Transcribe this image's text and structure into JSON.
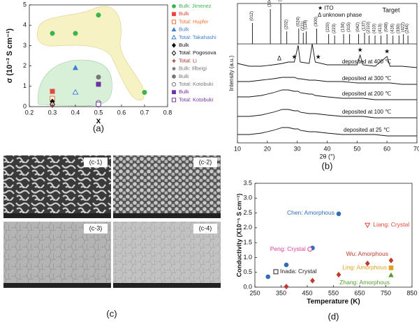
{
  "chart_data": [
    {
      "type": "scatter",
      "caption": "(a)",
      "xlabel": "x",
      "ylabel": "σ (10⁻³ S cm⁻¹)",
      "xlim": [
        0.2,
        0.8
      ],
      "ylim": [
        0,
        5
      ],
      "xticks": [
        0.2,
        0.3,
        0.4,
        0.5,
        0.6,
        0.7,
        0.8
      ],
      "yticks": [
        0,
        1,
        2,
        3,
        4,
        5
      ],
      "series": [
        {
          "name": "Bulk: Jimenez",
          "color": "#3cb44b",
          "marker": "circle",
          "x": [
            0.3,
            0.4,
            0.5,
            0.7
          ],
          "values": [
            3.6,
            3.6,
            4.5,
            0.7
          ]
        },
        {
          "name": "Bulk",
          "color": "#e8453c",
          "marker": "square",
          "x": [
            0.3
          ],
          "values": [
            0.75
          ]
        },
        {
          "name": "Total: Hupfer",
          "color": "#f07030",
          "marker": "square-open",
          "x": [
            0.3
          ],
          "values": [
            0.4
          ]
        },
        {
          "name": "Bulk",
          "color": "#3f7fd0",
          "marker": "triangle",
          "x": [
            0.4
          ],
          "values": [
            1.9
          ]
        },
        {
          "name": "Total: Takahashi",
          "color": "#3f7fd0",
          "marker": "triangle-open",
          "x": [
            0.4
          ],
          "values": [
            0.7
          ]
        },
        {
          "name": "Bulk",
          "color": "#111111",
          "marker": "diamond",
          "x": [
            0.3
          ],
          "values": [
            0.25
          ]
        },
        {
          "name": "Total: Pogosova",
          "color": "#111111",
          "marker": "diamond-open",
          "x": [
            0.3
          ],
          "values": [
            0.12
          ]
        },
        {
          "name": "Total: Li",
          "color": "#a0302a",
          "marker": "plus",
          "x": [
            0.3
          ],
          "values": [
            0.05
          ]
        },
        {
          "name": "Bulk: Illbeigi",
          "color": "#777777",
          "marker": "star",
          "x": [
            0.5
          ],
          "values": [
            0.05
          ]
        },
        {
          "name": "Bulk",
          "color": "#777777",
          "marker": "circle",
          "x": [
            0.5
          ],
          "values": [
            1.45
          ]
        },
        {
          "name": "Total: Kotobuki",
          "color": "#777777",
          "marker": "circle-open",
          "x": [
            0.5
          ],
          "values": [
            0.2
          ]
        },
        {
          "name": "Bulk",
          "color": "#7030a0",
          "marker": "square",
          "x": [
            0.5
          ],
          "values": [
            1.1
          ]
        },
        {
          "name": "Total: Kotobuki",
          "color": "#7030a0",
          "marker": "square-open",
          "x": [
            0.5
          ],
          "values": [
            0.12
          ]
        }
      ]
    },
    {
      "type": "line",
      "caption": "(b)",
      "xlabel": "2θ (°)",
      "ylabel": "Intensity (a.u.)",
      "xlim": [
        10,
        70
      ],
      "xticks": [
        10,
        20,
        30,
        40,
        50,
        60,
        70
      ],
      "ylim": [
        0,
        100
      ],
      "legend": [
        "★ ITO",
        "Δ unknown phase"
      ],
      "target": {
        "name": "Target",
        "baseline": 71,
        "x": [
          15,
          21,
          24.5,
          26.5,
          30.5,
          32,
          33,
          36.5,
          40.5,
          42.5,
          45.5,
          47.5,
          50.5,
          52.5,
          54,
          56,
          58,
          60,
          62,
          64,
          65.5,
          67
        ],
        "values": [
          86,
          96,
          100,
          80,
          82,
          79,
          80,
          82,
          78,
          77,
          78,
          78,
          78,
          79,
          77,
          77,
          77,
          78,
          77,
          77,
          78,
          77
        ],
        "labels": [
          "(012)",
          "(104)",
          "(113)",
          "(202)",
          "(024)",
          "(211)",
          "(116)",
          "(300)",
          "(220)",
          "(223)",
          "(134)",
          "(315)",
          "(042)",
          "(137)",
          "(2110)",
          "(410)",
          "(413)",
          "(048)",
          "(416)",
          "(330)",
          "(422)",
          "(244)"
        ]
      },
      "annotations": [
        {
          "x": 24,
          "text": "Δ"
        },
        {
          "x": 29,
          "text": "★"
        },
        {
          "x": 37,
          "text": "★"
        },
        {
          "x": 51,
          "text": "★"
        },
        {
          "x": 60,
          "text": "★"
        }
      ],
      "x": [
        10,
        14,
        18,
        22,
        25,
        27,
        29,
        30.3,
        31,
        34,
        35,
        36,
        40,
        45,
        50,
        51,
        52,
        56,
        60,
        61,
        65,
        70
      ],
      "series": [
        {
          "name": "deposited at 400 ℃",
          "color": "#111111",
          "values": [
            57,
            55,
            55,
            56,
            57,
            58,
            58,
            70,
            58,
            57,
            71,
            58,
            56,
            56,
            56,
            63,
            56,
            55,
            62,
            55,
            55,
            54
          ]
        },
        {
          "name": "deposited at 300 ℃",
          "color": "#111111",
          "values": [
            44,
            44,
            45,
            46,
            47,
            47,
            47,
            46,
            46,
            45,
            45,
            45,
            44,
            44,
            43,
            43,
            43,
            43,
            43,
            43,
            42,
            42
          ]
        },
        {
          "name": "deposited at 200 ℃",
          "color": "#111111",
          "values": [
            33,
            33,
            34,
            36,
            38,
            38,
            37,
            37,
            36,
            35,
            35,
            34,
            33,
            32,
            32,
            32,
            32,
            31,
            31,
            31,
            31,
            31
          ]
        },
        {
          "name": "deposited at 100 ℃",
          "color": "#111111",
          "values": [
            19,
            19,
            20,
            22,
            24,
            24,
            23,
            23,
            22,
            21,
            21,
            21,
            20,
            19,
            19,
            19,
            19,
            18,
            18,
            18,
            18,
            18
          ]
        },
        {
          "name": "deposited at 25 ℃",
          "color": "#111111",
          "values": [
            6,
            6,
            7,
            9,
            11,
            11,
            10,
            10,
            9,
            8,
            8,
            8,
            7,
            6,
            6,
            6,
            6,
            6,
            5,
            5,
            5,
            5
          ]
        }
      ]
    },
    {
      "type": "scatter",
      "caption": "(d)",
      "xlabel": "Temperature (K)",
      "ylabel": "Conductivity (X10⁻⁵ S cm⁻¹)",
      "xlim": [
        250,
        850
      ],
      "ylim": [
        0,
        3.5
      ],
      "xticks": [
        250,
        350,
        450,
        550,
        650,
        750,
        850
      ],
      "yticks": [
        {
          "value": 0,
          "label": "0.0"
        },
        0.5,
        {
          "value": 1,
          "label": "1.0"
        },
        1.5,
        {
          "value": 2,
          "label": "2.0"
        },
        2.5,
        {
          "value": 3,
          "label": "3.0"
        },
        3.5
      ],
      "series": [
        {
          "name": "Chen: Amorphous",
          "color": "#2f6db5",
          "marker": "circle",
          "x": [
            300,
            370,
            470,
            570
          ],
          "values": [
            0.35,
            0.75,
            1.32,
            2.47
          ]
        },
        {
          "name": "Liang: Crystal",
          "color": "#e8453c",
          "marker": "triangle-down-open",
          "x": [
            680
          ],
          "values": [
            2.1
          ]
        },
        {
          "name": "Peng: Crystal",
          "color": "#e0409a",
          "marker": "circle-open",
          "x": [
            460
          ],
          "values": [
            1.28
          ]
        },
        {
          "name": "Wu: Amorphous",
          "color": "#c0392b",
          "marker": "diamond",
          "x": [
            370,
            470,
            570,
            680,
            770
          ],
          "values": [
            0.02,
            0.22,
            0.42,
            0.8,
            0.9
          ]
        },
        {
          "name": "Inada: Crystal",
          "color": "#222222",
          "marker": "square-open",
          "x": [
            330
          ],
          "values": [
            0.52
          ]
        },
        {
          "name": "Ling: Amorphous",
          "color": "#e0a020",
          "marker": "square",
          "x": [
            770
          ],
          "values": [
            0.65
          ]
        },
        {
          "name": "Zhang: Amorphous",
          "color": "#5a9a30",
          "marker": "triangle",
          "x": [
            770
          ],
          "values": [
            0.4
          ]
        }
      ]
    }
  ],
  "sem_images": {
    "caption": "(c)",
    "labels": [
      "(c-1)",
      "(c-2)",
      "(c-3)",
      "(c-4)"
    ]
  }
}
